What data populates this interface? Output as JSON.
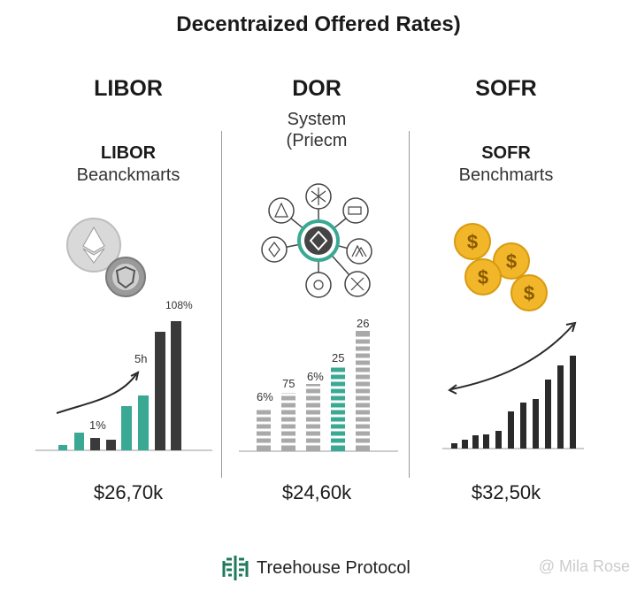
{
  "title": "Decentraized Offered Rates)",
  "columns": [
    {
      "heading": "LIBOR",
      "sub1": "LIBOR",
      "sub2": "Beanckmarts",
      "price": "$26,70k"
    },
    {
      "heading": "DOR",
      "sub1": "System",
      "sub2": "(Priecm",
      "price": "$24,60k"
    },
    {
      "heading": "SOFR",
      "sub1": "SOFR",
      "sub2": "Benchmarts",
      "price": "$32,50k"
    }
  ],
  "labels": {
    "libor": [
      "1%",
      "5h",
      "108%"
    ],
    "dor": [
      "6%",
      "75",
      "6%",
      "25",
      "26"
    ]
  },
  "footer": {
    "brand": "Treehouse Protocol",
    "watermark": "@ Mila Rose"
  },
  "colors": {
    "teal": "#3aa993",
    "dark": "#3a3a3a",
    "grey": "#a9a9a9",
    "gold": "#f2b62a"
  }
}
